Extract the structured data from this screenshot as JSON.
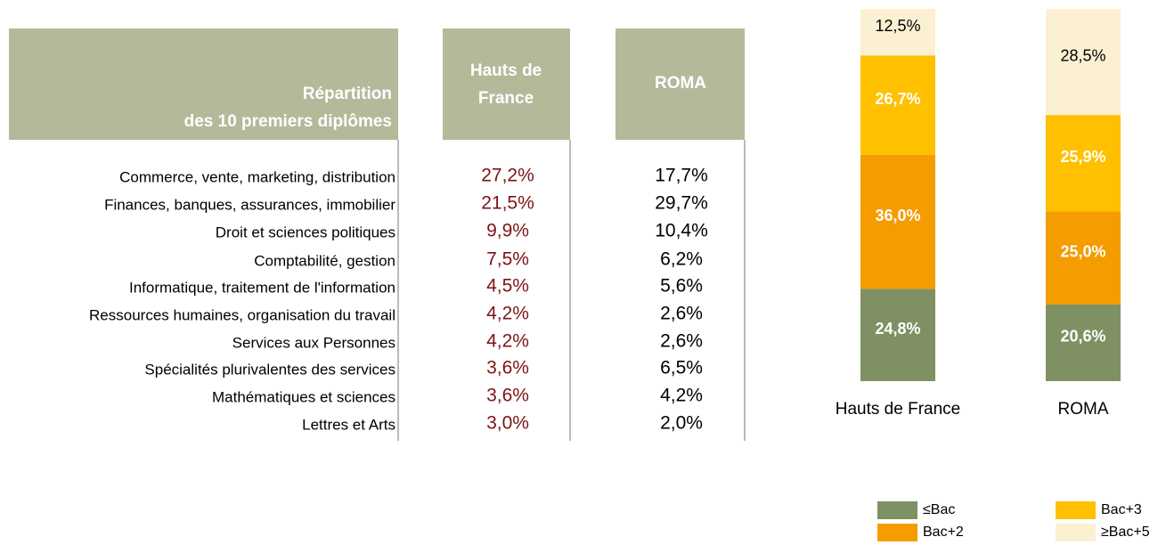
{
  "table": {
    "header": [
      [
        "Répartition",
        "des 10 premiers diplômes"
      ],
      [
        "Hauts de",
        "France"
      ],
      [
        "ROMA"
      ]
    ],
    "rows": [
      [
        "Commerce, vente, marketing, distribution",
        "27,2%",
        "17,7%"
      ],
      [
        "Finances, banques, assurances, immobilier",
        "21,5%",
        "29,7%"
      ],
      [
        "Droit et sciences politiques",
        "9,9%",
        "10,4%"
      ],
      [
        "Comptabilité, gestion",
        "7,5%",
        "6,2%"
      ],
      [
        "Informatique, traitement de l'information",
        "4,5%",
        "5,6%"
      ],
      [
        "Ressources humaines, organisation du travail",
        "4,2%",
        "2,6%"
      ],
      [
        "Services aux Personnes",
        "4,2%",
        "2,6%"
      ],
      [
        "Spécialités plurivalentes des services",
        "3,6%",
        "6,5%"
      ],
      [
        "Mathématiques et sciences",
        "3,6%",
        "4,2%"
      ],
      [
        "Lettres et Arts",
        "3,0%",
        "2,0%"
      ]
    ]
  },
  "chart_data": {
    "type": "stacked_bar",
    "categories": [
      "Hauts de France",
      "ROMA"
    ],
    "series": [
      {
        "name": "≤Bac",
        "color": "#7f9163",
        "values": [
          24.8,
          20.6
        ],
        "value_labels": [
          "24,8%",
          "20,6%"
        ]
      },
      {
        "name": "Bac+2",
        "color": "#f59c00",
        "values": [
          36.0,
          25.0
        ],
        "value_labels": [
          "36,0%",
          "25,0%"
        ]
      },
      {
        "name": "Bac+3",
        "color": "#ffc000",
        "values": [
          26.7,
          25.9
        ],
        "value_labels": [
          "26,7%",
          "25,9%"
        ]
      },
      {
        "name": "≥Bac+5",
        "color": "#fbf0d2",
        "values": [
          12.5,
          28.5
        ],
        "value_labels": [
          "12,5%",
          "28,5%"
        ]
      }
    ]
  }
}
